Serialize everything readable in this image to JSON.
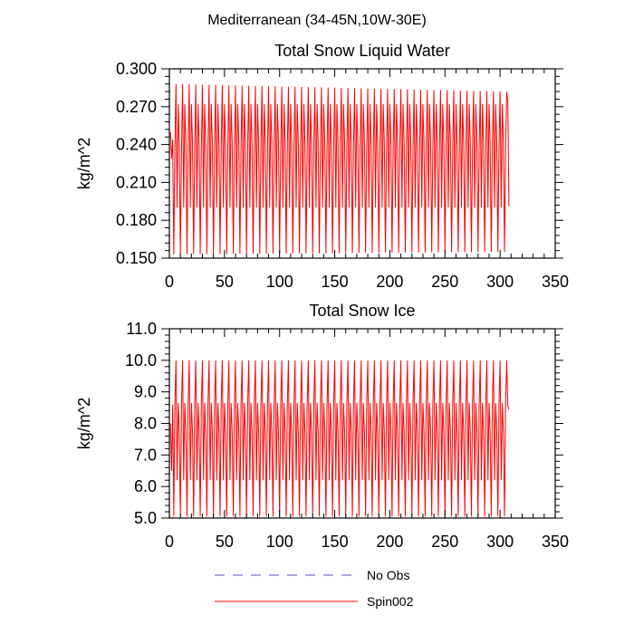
{
  "figure_title": "Mediterranean (34-45N,10W-30E)",
  "legend": [
    {
      "label": "No Obs",
      "color": "#4f4fd9",
      "style": "dashed"
    },
    {
      "label": "Spin002",
      "color": "#ff0000",
      "style": "solid"
    }
  ],
  "chart_data": [
    {
      "type": "line",
      "title": "Total Snow Liquid Water",
      "xlabel": "",
      "ylabel": "kg/m^2",
      "xlim": [
        0,
        350
      ],
      "ylim": [
        0.15,
        0.3
      ],
      "xticks": [
        0,
        50,
        100,
        150,
        200,
        250,
        300,
        350
      ],
      "xtick_labels": [
        "0",
        "50",
        "100",
        "150",
        "200",
        "250",
        "300",
        "350"
      ],
      "yticks": [
        0.15,
        0.18,
        0.21,
        0.24,
        0.27,
        0.3
      ],
      "ytick_labels": [
        "0.150",
        "0.180",
        "0.210",
        "0.240",
        "0.270",
        "0.300"
      ],
      "series": [
        {
          "name": "Spin002",
          "color": "#ff0000",
          "n_points": 308,
          "period": 6,
          "cycle_values": [
            0.153,
            0.237,
            0.288,
            0.19,
            0.272,
            0.24
          ],
          "start_values": [
            0.25,
            0.229,
            0.244
          ],
          "end_values": [
            0.275,
            0.191
          ],
          "max_envelope": {
            "start": 0.288,
            "end": 0.282
          },
          "min_envelope": {
            "start": 0.153,
            "end": 0.155
          }
        },
        {
          "name": "No Obs",
          "color": "#4f4fd9",
          "values": []
        }
      ]
    },
    {
      "type": "line",
      "title": "Total Snow Ice",
      "xlabel": "",
      "ylabel": "kg/m^2",
      "xlim": [
        0,
        350
      ],
      "ylim": [
        5.0,
        11.0
      ],
      "xticks": [
        0,
        50,
        100,
        150,
        200,
        250,
        300,
        350
      ],
      "xtick_labels": [
        "0",
        "50",
        "100",
        "150",
        "200",
        "250",
        "300",
        "350"
      ],
      "yticks": [
        5.0,
        6.0,
        7.0,
        8.0,
        9.0,
        10.0,
        11.0
      ],
      "ytick_labels": [
        "5.0",
        "6.0",
        "7.0",
        "8.0",
        "9.0",
        "10.0",
        "11.0"
      ],
      "series": [
        {
          "name": "Spin002",
          "color": "#ff0000",
          "n_points": 308,
          "period": 6,
          "cycle_values": [
            5.05,
            8.6,
            10.0,
            6.2,
            8.65,
            7.7
          ],
          "start_values": [
            8.0,
            6.5,
            8.6
          ],
          "end_values": [
            8.55,
            8.45
          ],
          "max_envelope": {
            "start": 10.0,
            "end": 10.0
          },
          "min_envelope": {
            "start": 5.05,
            "end": 5.05
          }
        },
        {
          "name": "No Obs",
          "color": "#4f4fd9",
          "values": []
        }
      ]
    }
  ]
}
